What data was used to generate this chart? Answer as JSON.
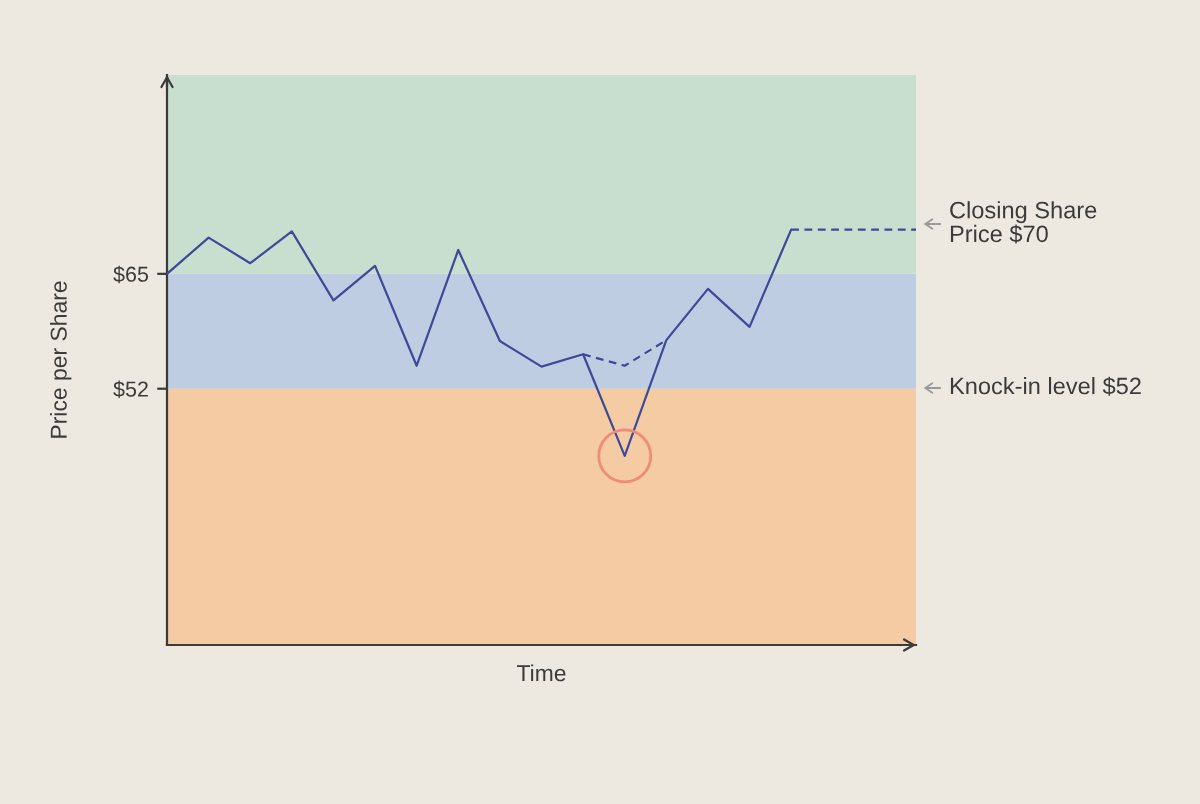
{
  "chart_data": {
    "type": "line",
    "xlabel": "Time",
    "ylabel": "Price per Share",
    "categories": [
      null,
      null,
      null,
      null,
      null,
      null,
      null,
      null,
      null,
      null,
      null,
      null,
      null,
      null,
      null,
      null,
      null,
      null,
      null
    ],
    "series": [
      {
        "color": "#3e4a98",
        "line_style": "solid",
        "values": [
          65.0,
          69.1,
          66.2,
          69.8,
          62.0,
          65.9,
          54.6,
          67.7,
          57.4,
          54.5,
          55.9,
          44.4,
          57.5,
          63.3,
          59.0,
          70,
          null,
          null,
          null
        ]
      },
      {
        "color": "#3e4a98",
        "line_style": "dashed",
        "values": [
          null,
          null,
          null,
          null,
          null,
          null,
          null,
          null,
          null,
          null,
          55.9,
          54.6,
          57.5,
          null,
          null,
          70,
          70,
          70,
          70
        ]
      },
      {
        "type": "scatter",
        "marker": "circle",
        "color": "#ef8b77",
        "values": [
          null,
          null,
          null,
          null,
          null,
          null,
          null,
          null,
          null,
          null,
          null,
          44.4,
          null,
          null,
          null,
          null,
          null,
          null,
          null
        ]
      }
    ],
    "ylim": [
      23,
      87.5
    ],
    "yticks": [
      {
        "value": 52,
        "label": "$52"
      },
      {
        "value": 65,
        "label": "$65"
      }
    ],
    "bands": [
      {
        "axis": "y",
        "from": 23,
        "to": 52,
        "color": "#f5cba4"
      },
      {
        "axis": "y",
        "from": 52,
        "to": 65,
        "color": "#bfcde3"
      },
      {
        "axis": "y",
        "from": 65,
        "to": 87.5,
        "color": "#c8dfd0"
      }
    ],
    "annotations": [
      "Closing Share\nPrice $70",
      "Knock-in level $52"
    ],
    "tick_labels": "y"
  }
}
